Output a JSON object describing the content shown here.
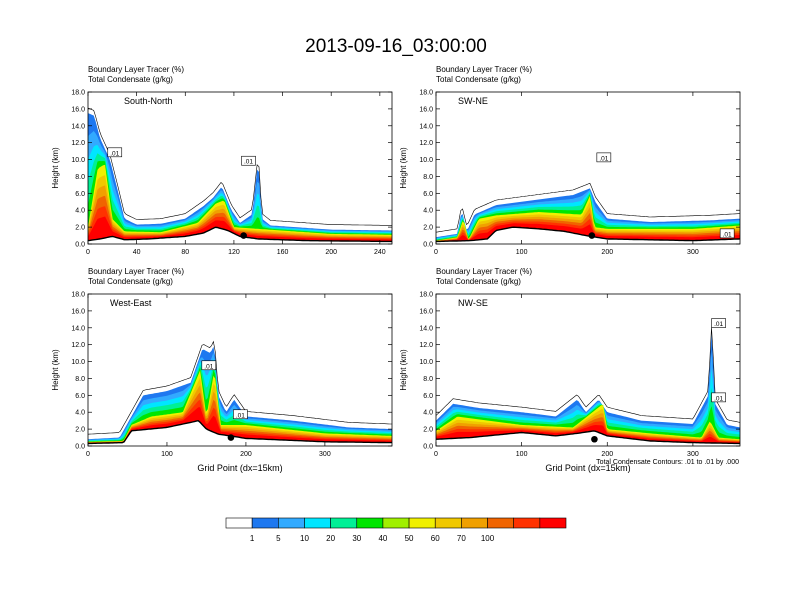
{
  "title": "2013-09-16_03:00:00",
  "legend": {
    "colors": [
      "#ffffff",
      "#1e78f0",
      "#32aaff",
      "#00e6ff",
      "#00f096",
      "#00e600",
      "#a0f000",
      "#f0f000",
      "#f0c800",
      "#f0a000",
      "#f06400",
      "#ff3200",
      "#ff0000"
    ],
    "labels": [
      "1",
      "5",
      "10",
      "20",
      "30",
      "40",
      "50",
      "60",
      "70",
      "100"
    ]
  },
  "contour_note": "Total Condensate Contours: .01 to .01 by .000",
  "chart_data": [
    {
      "type": "area",
      "subtitle_1": "Boundary Layer Tracer   (%)",
      "subtitle_2": "Total Condensate   (g/kg)",
      "panel_label": "South-North",
      "xlabel": "",
      "ylabel": "Height (km)",
      "xlim": [
        0,
        250
      ],
      "ylim": [
        0,
        18
      ],
      "xticks": [
        "0",
        "40",
        "80",
        "120",
        "160",
        "200",
        "240"
      ],
      "xtick_values": [
        0,
        40,
        80,
        120,
        160,
        200,
        240
      ],
      "yticks": [
        "0.0",
        "2.0",
        "4.0",
        "6.0",
        "8.0",
        "10.0",
        "12.0",
        "14.0",
        "16.0",
        "18.0"
      ],
      "terrain": [
        [
          0,
          0.4
        ],
        [
          10,
          0.6
        ],
        [
          20,
          0.9
        ],
        [
          30,
          0.5
        ],
        [
          50,
          0.6
        ],
        [
          80,
          0.9
        ],
        [
          95,
          1.3
        ],
        [
          105,
          2.0
        ],
        [
          115,
          1.6
        ],
        [
          125,
          0.9
        ],
        [
          140,
          0.6
        ],
        [
          180,
          0.4
        ],
        [
          250,
          0.3
        ]
      ],
      "tracer_top": [
        [
          0,
          15.5
        ],
        [
          5,
          15.2
        ],
        [
          10,
          12.5
        ],
        [
          18,
          10.0
        ],
        [
          25,
          6.0
        ],
        [
          30,
          3.0
        ],
        [
          40,
          2.3
        ],
        [
          60,
          2.4
        ],
        [
          80,
          3.0
        ],
        [
          95,
          4.5
        ],
        [
          103,
          5.5
        ],
        [
          110,
          6.8
        ],
        [
          118,
          4.0
        ],
        [
          125,
          2.5
        ],
        [
          135,
          3.5
        ],
        [
          140,
          10.0
        ],
        [
          143,
          3.0
        ],
        [
          150,
          2.2
        ],
        [
          170,
          2.0
        ],
        [
          200,
          1.7
        ],
        [
          250,
          1.6
        ]
      ],
      "core_top": [
        [
          0,
          2.0
        ],
        [
          8,
          9.0
        ],
        [
          14,
          9.5
        ],
        [
          20,
          3.0
        ],
        [
          30,
          1.5
        ],
        [
          60,
          1.4
        ],
        [
          90,
          2.5
        ],
        [
          105,
          4.8
        ],
        [
          112,
          5.2
        ],
        [
          120,
          2.0
        ],
        [
          140,
          1.8
        ],
        [
          200,
          1.2
        ],
        [
          250,
          1.1
        ]
      ],
      "contour_labels": [
        {
          "x": 22,
          "y": 10.8,
          "text": ".01"
        },
        {
          "x": 132,
          "y": 9.8,
          "text": ".01"
        }
      ],
      "marker": {
        "x": 128,
        "y": 1.0
      }
    },
    {
      "type": "area",
      "subtitle_1": "Boundary Layer Tracer   (%)",
      "subtitle_2": "Total Condensate   (g/kg)",
      "panel_label": "SW-NE",
      "xlabel": "",
      "ylabel": "Height (km)",
      "xlim": [
        0,
        355
      ],
      "ylim": [
        0,
        18
      ],
      "xticks": [
        "0",
        "100",
        "200",
        "300"
      ],
      "xtick_values": [
        0,
        100,
        200,
        300
      ],
      "yticks": [
        "0.0",
        "2.0",
        "4.0",
        "6.0",
        "8.0",
        "10.0",
        "12.0",
        "14.0",
        "16.0",
        "18.0"
      ],
      "terrain": [
        [
          0,
          0.3
        ],
        [
          40,
          0.4
        ],
        [
          60,
          0.6
        ],
        [
          70,
          1.6
        ],
        [
          90,
          2.0
        ],
        [
          120,
          1.8
        ],
        [
          150,
          1.5
        ],
        [
          175,
          1.0
        ],
        [
          200,
          0.6
        ],
        [
          300,
          0.4
        ],
        [
          355,
          0.6
        ]
      ],
      "tracer_top": [
        [
          0,
          0.8
        ],
        [
          25,
          1.2
        ],
        [
          30,
          4.0
        ],
        [
          36,
          1.5
        ],
        [
          45,
          3.5
        ],
        [
          70,
          4.6
        ],
        [
          100,
          5.0
        ],
        [
          130,
          5.4
        ],
        [
          160,
          5.8
        ],
        [
          180,
          6.6
        ],
        [
          186,
          5.0
        ],
        [
          200,
          3.0
        ],
        [
          250,
          2.6
        ],
        [
          320,
          2.8
        ],
        [
          355,
          3.0
        ]
      ],
      "core_top": [
        [
          0,
          0.4
        ],
        [
          25,
          0.8
        ],
        [
          32,
          3.0
        ],
        [
          38,
          0.5
        ],
        [
          50,
          3.0
        ],
        [
          70,
          3.4
        ],
        [
          120,
          3.8
        ],
        [
          170,
          3.5
        ],
        [
          180,
          5.8
        ],
        [
          185,
          2.0
        ],
        [
          200,
          1.8
        ],
        [
          300,
          1.8
        ],
        [
          355,
          2.2
        ]
      ],
      "contour_labels": [
        {
          "x": 196,
          "y": 10.2,
          "text": ".01"
        },
        {
          "x": 340,
          "y": 1.2,
          "text": ".01"
        }
      ],
      "marker": {
        "x": 182,
        "y": 1.0
      }
    },
    {
      "type": "area",
      "subtitle_1": "Boundary Layer Tracer   (%)",
      "subtitle_2": "Total Condensate   (g/kg)",
      "panel_label": "West-East",
      "xlabel": "Grid Point (dx=15km)",
      "ylabel": "Height (km)",
      "xlim": [
        0,
        385
      ],
      "ylim": [
        0,
        18
      ],
      "xticks": [
        "0",
        "100",
        "200",
        "300"
      ],
      "xtick_values": [
        0,
        100,
        200,
        300
      ],
      "yticks": [
        "0.0",
        "2.0",
        "4.0",
        "6.0",
        "8.0",
        "10.0",
        "12.0",
        "14.0",
        "16.0",
        "18.0"
      ],
      "terrain": [
        [
          0,
          0.3
        ],
        [
          45,
          0.4
        ],
        [
          55,
          1.8
        ],
        [
          100,
          2.2
        ],
        [
          140,
          3.0
        ],
        [
          150,
          2.0
        ],
        [
          165,
          1.4
        ],
        [
          180,
          1.2
        ],
        [
          200,
          0.9
        ],
        [
          300,
          0.5
        ],
        [
          385,
          0.4
        ]
      ],
      "tracer_top": [
        [
          0,
          0.8
        ],
        [
          40,
          1.0
        ],
        [
          55,
          3.5
        ],
        [
          70,
          6.0
        ],
        [
          100,
          6.5
        ],
        [
          130,
          7.5
        ],
        [
          145,
          11.5
        ],
        [
          155,
          11.0
        ],
        [
          160,
          12.0
        ],
        [
          165,
          6.0
        ],
        [
          175,
          4.0
        ],
        [
          185,
          5.5
        ],
        [
          200,
          3.5
        ],
        [
          260,
          3.0
        ],
        [
          330,
          2.2
        ],
        [
          385,
          2.0
        ]
      ],
      "core_top": [
        [
          0,
          0.5
        ],
        [
          45,
          0.6
        ],
        [
          55,
          2.5
        ],
        [
          80,
          3.5
        ],
        [
          120,
          4.0
        ],
        [
          142,
          9.0
        ],
        [
          150,
          3.5
        ],
        [
          160,
          9.0
        ],
        [
          168,
          2.5
        ],
        [
          200,
          2.5
        ],
        [
          300,
          1.5
        ],
        [
          385,
          1.2
        ]
      ],
      "contour_labels": [
        {
          "x": 153,
          "y": 9.5,
          "text": ".01"
        },
        {
          "x": 193,
          "y": 3.7,
          "text": ".01"
        }
      ],
      "marker": {
        "x": 181,
        "y": 1.0
      }
    },
    {
      "type": "area",
      "subtitle_1": "Boundary Layer Tracer   (%)",
      "subtitle_2": "Total Condensate   (g/kg)",
      "panel_label": "NW-SE",
      "xlabel": "Grid Point (dx=15km)",
      "ylabel": "Height (km)",
      "xlim": [
        0,
        355
      ],
      "ylim": [
        0,
        18
      ],
      "xticks": [
        "0",
        "100",
        "200",
        "300"
      ],
      "xtick_values": [
        0,
        100,
        200,
        300
      ],
      "yticks": [
        "0.0",
        "2.0",
        "4.0",
        "6.0",
        "8.0",
        "10.0",
        "12.0",
        "14.0",
        "16.0",
        "18.0"
      ],
      "terrain": [
        [
          0,
          0.8
        ],
        [
          40,
          1.0
        ],
        [
          100,
          1.6
        ],
        [
          140,
          1.2
        ],
        [
          165,
          1.5
        ],
        [
          185,
          1.8
        ],
        [
          200,
          1.2
        ],
        [
          250,
          0.6
        ],
        [
          300,
          0.4
        ],
        [
          355,
          0.3
        ]
      ],
      "tracer_top": [
        [
          0,
          3.0
        ],
        [
          20,
          5.0
        ],
        [
          50,
          4.5
        ],
        [
          100,
          4.0
        ],
        [
          140,
          3.5
        ],
        [
          165,
          5.5
        ],
        [
          175,
          4.0
        ],
        [
          190,
          5.5
        ],
        [
          200,
          4.0
        ],
        [
          240,
          3.0
        ],
        [
          300,
          2.6
        ],
        [
          318,
          6.0
        ],
        [
          322,
          14.0
        ],
        [
          326,
          5.0
        ],
        [
          340,
          2.5
        ],
        [
          355,
          2.2
        ]
      ],
      "core_top": [
        [
          0,
          1.8
        ],
        [
          25,
          3.5
        ],
        [
          100,
          2.5
        ],
        [
          160,
          2.2
        ],
        [
          180,
          3.8
        ],
        [
          195,
          5.0
        ],
        [
          200,
          2.0
        ],
        [
          250,
          1.5
        ],
        [
          310,
          1.0
        ],
        [
          320,
          3.0
        ],
        [
          330,
          1.0
        ],
        [
          355,
          0.8
        ]
      ],
      "contour_labels": [
        {
          "x": 330,
          "y": 14.5,
          "text": ".01"
        },
        {
          "x": 330,
          "y": 5.7,
          "text": ".01"
        }
      ],
      "marker": {
        "x": 185,
        "y": 0.8
      }
    }
  ]
}
